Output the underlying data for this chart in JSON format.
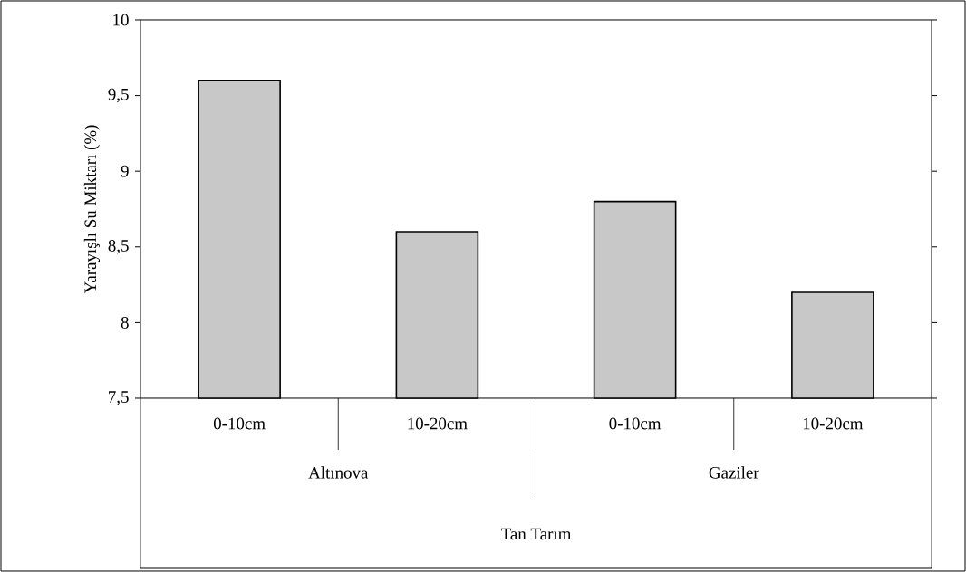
{
  "chart_data": {
    "type": "bar",
    "ylabel": "Yarayışlı Su Miktarı (%)",
    "categories": [
      "0-10cm",
      "10-20cm",
      "0-10cm",
      "10-20cm"
    ],
    "values": [
      9.6,
      8.6,
      8.8,
      8.2
    ],
    "color": "#c8c8c8",
    "ylim": [
      7.5,
      10
    ],
    "yticks": [
      {
        "value": 7.5,
        "label": "7,5"
      },
      8,
      {
        "value": 8.5,
        "label": "8,5"
      },
      9,
      {
        "value": 9.5,
        "label": "9,5"
      },
      10
    ],
    "annotations": [
      "Altınova",
      "Gaziler",
      "Tan Tarım"
    ]
  }
}
